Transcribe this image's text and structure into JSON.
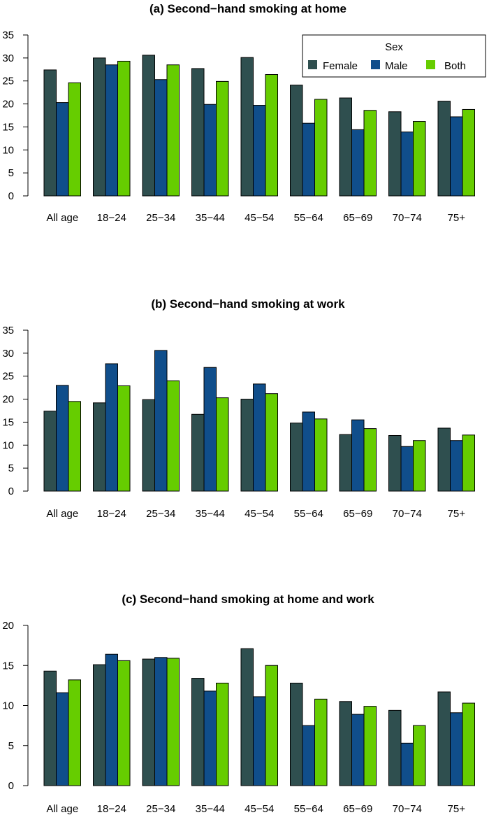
{
  "legend": {
    "title": "Sex",
    "entries": [
      {
        "label": "Female",
        "color": "#2f4f4f"
      },
      {
        "label": "Male",
        "color": "#104e8b"
      },
      {
        "label": "Both",
        "color": "#66cd00"
      }
    ]
  },
  "chart_data": [
    {
      "type": "bar",
      "title": "(a) Second−hand smoking at home",
      "xlabel": "",
      "ylabel": "",
      "categories": [
        "All age",
        "18−24",
        "25−34",
        "35−44",
        "45−54",
        "55−64",
        "65−69",
        "70−74",
        "75+"
      ],
      "ylim": [
        0,
        35
      ],
      "yticks": [
        "0",
        "5",
        "10",
        "15",
        "20",
        "25",
        "30",
        "35"
      ],
      "legend": "top-right",
      "grid": false,
      "series": [
        {
          "name": "Female",
          "color": "#2f4f4f",
          "values": [
            27.4,
            30.0,
            30.6,
            27.7,
            30.1,
            24.1,
            21.3,
            18.3,
            20.6
          ]
        },
        {
          "name": "Male",
          "color": "#104e8b",
          "values": [
            20.3,
            28.5,
            25.3,
            19.9,
            19.7,
            15.8,
            14.4,
            13.9,
            17.2
          ]
        },
        {
          "name": "Both",
          "color": "#66cd00",
          "values": [
            24.6,
            29.3,
            28.5,
            24.9,
            26.4,
            21.0,
            18.6,
            16.2,
            18.8
          ]
        }
      ]
    },
    {
      "type": "bar",
      "title": "(b) Second−hand smoking at work",
      "xlabel": "",
      "ylabel": "",
      "categories": [
        "All age",
        "18−24",
        "25−34",
        "35−44",
        "45−54",
        "55−64",
        "65−69",
        "70−74",
        "75+"
      ],
      "ylim": [
        0,
        35
      ],
      "yticks": [
        "0",
        "5",
        "10",
        "15",
        "20",
        "25",
        "30",
        "35"
      ],
      "legend": "none",
      "grid": false,
      "series": [
        {
          "name": "Female",
          "color": "#2f4f4f",
          "values": [
            17.4,
            19.2,
            19.9,
            16.7,
            20.0,
            14.8,
            12.3,
            12.1,
            13.7
          ]
        },
        {
          "name": "Male",
          "color": "#104e8b",
          "values": [
            23.0,
            27.7,
            30.6,
            26.9,
            23.3,
            17.2,
            15.5,
            9.7,
            11.0
          ]
        },
        {
          "name": "Both",
          "color": "#66cd00",
          "values": [
            19.5,
            22.9,
            24.0,
            20.3,
            21.2,
            15.7,
            13.6,
            11.0,
            12.2
          ]
        }
      ]
    },
    {
      "type": "bar",
      "title": "(c) Second−hand smoking at home and work",
      "xlabel": "",
      "ylabel": "",
      "categories": [
        "All age",
        "18−24",
        "25−34",
        "35−44",
        "45−54",
        "55−64",
        "65−69",
        "70−74",
        "75+"
      ],
      "ylim": [
        0,
        20
      ],
      "yticks": [
        "0",
        "5",
        "10",
        "15",
        "20"
      ],
      "legend": "none",
      "grid": false,
      "series": [
        {
          "name": "Female",
          "color": "#2f4f4f",
          "values": [
            14.3,
            15.1,
            15.8,
            13.4,
            17.1,
            12.8,
            10.5,
            9.4,
            11.7
          ]
        },
        {
          "name": "Male",
          "color": "#104e8b",
          "values": [
            11.6,
            16.4,
            16.0,
            11.8,
            11.1,
            7.5,
            8.9,
            5.3,
            9.1
          ]
        },
        {
          "name": "Both",
          "color": "#66cd00",
          "values": [
            13.2,
            15.6,
            15.9,
            12.8,
            15.0,
            10.8,
            9.9,
            7.5,
            10.3
          ]
        }
      ]
    }
  ]
}
